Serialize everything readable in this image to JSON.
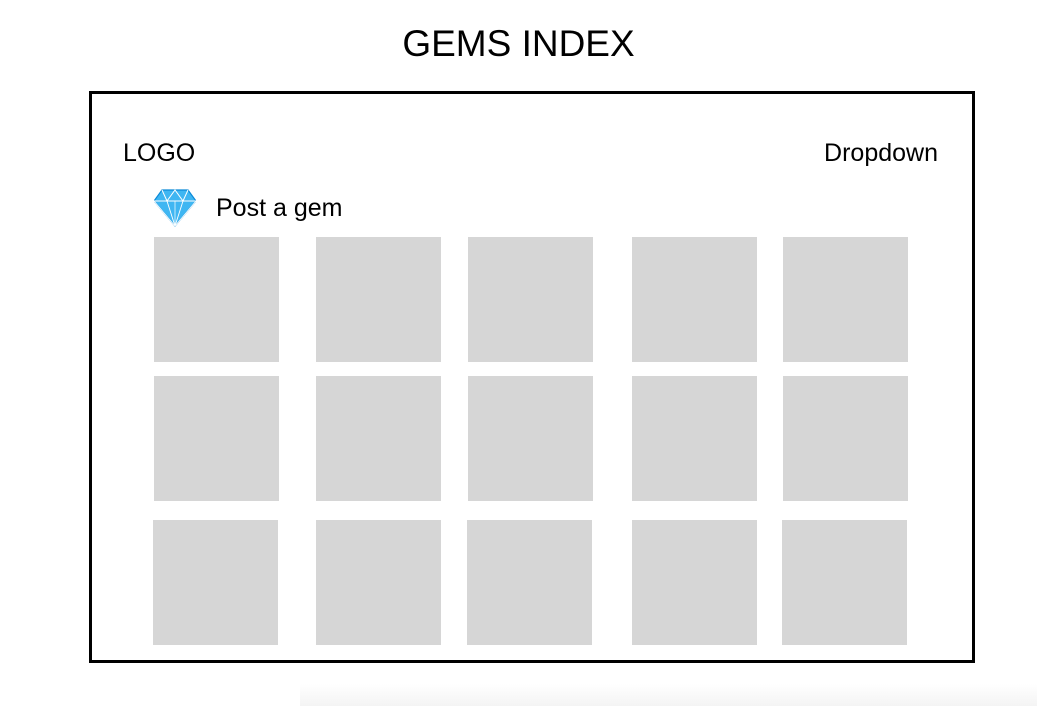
{
  "page": {
    "title": "GEMS INDEX"
  },
  "header": {
    "logo_text": "LOGO",
    "dropdown_label": "Dropdown"
  },
  "post": {
    "label": "Post a gem",
    "icon": "diamond-icon"
  },
  "grid": {
    "rows": 3,
    "columns": 5,
    "tile_color": "#d6d6d6"
  },
  "colors": {
    "gem_light": "#3fb6f2",
    "gem_dark": "#0a8ad8",
    "border": "#000000"
  }
}
